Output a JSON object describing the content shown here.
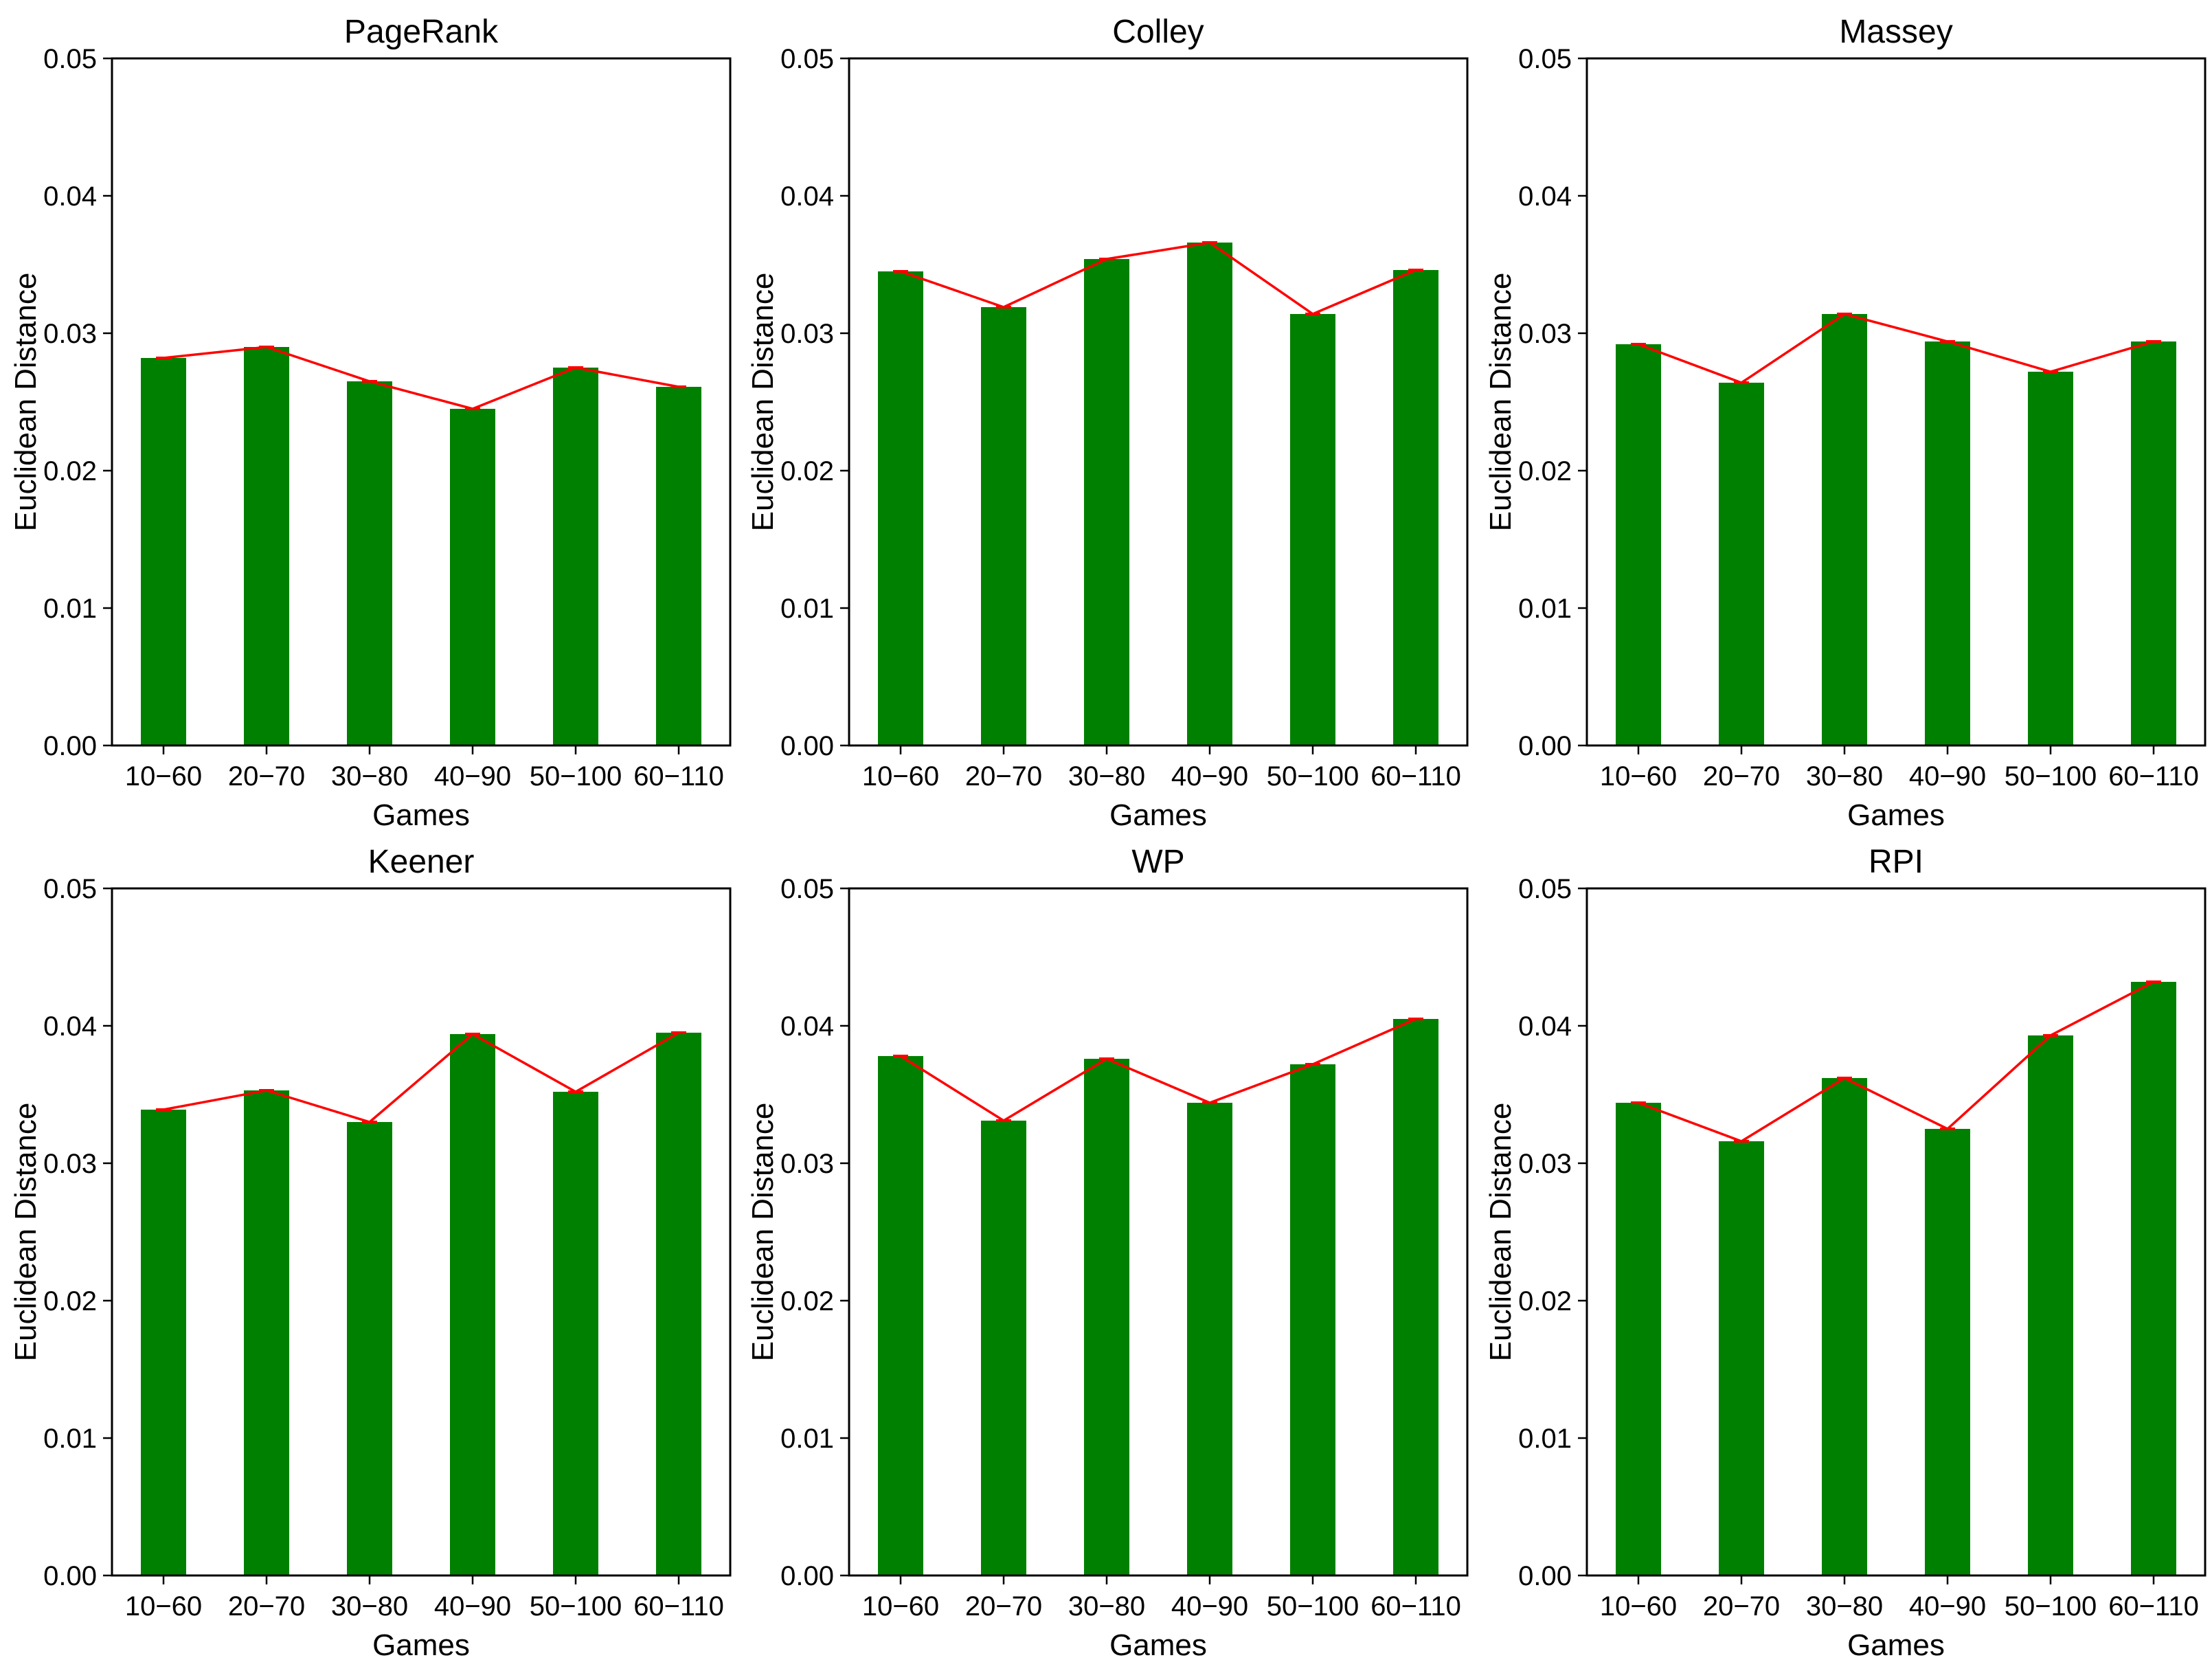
{
  "figure": {
    "background": "#ffffff",
    "bar_color": "#008000",
    "line_color": "#ff0000",
    "axis_color": "#000000",
    "xlabel": "Games",
    "ylabel": "Euclidean Distance",
    "categories": [
      "10−60",
      "20−70",
      "30−80",
      "40−90",
      "50−100",
      "60−110"
    ],
    "ytick_labels": [
      "0.00",
      "0.01",
      "0.02",
      "0.03",
      "0.04",
      "0.05"
    ],
    "ylim": [
      0,
      0.05
    ]
  },
  "chart_data": [
    {
      "type": "bar",
      "title": "PageRank",
      "categories": [
        "10−60",
        "20−70",
        "30−80",
        "40−90",
        "50−100",
        "60−110"
      ],
      "values": [
        0.0282,
        0.029,
        0.0265,
        0.0245,
        0.0275,
        0.0261
      ],
      "line_values": [
        0.0282,
        0.029,
        0.0265,
        0.0245,
        0.0275,
        0.0261
      ],
      "xlabel": "Games",
      "ylabel": "Euclidean Distance",
      "ylim": [
        0,
        0.05
      ],
      "grid": false,
      "legend": "none"
    },
    {
      "type": "bar",
      "title": "Colley",
      "categories": [
        "10−60",
        "20−70",
        "30−80",
        "40−90",
        "50−100",
        "60−110"
      ],
      "values": [
        0.0345,
        0.0319,
        0.0354,
        0.0366,
        0.0314,
        0.0346
      ],
      "line_values": [
        0.0345,
        0.0319,
        0.0354,
        0.0366,
        0.0314,
        0.0346
      ],
      "xlabel": "Games",
      "ylabel": "Euclidean Distance",
      "ylim": [
        0,
        0.05
      ],
      "grid": false,
      "legend": "none"
    },
    {
      "type": "bar",
      "title": "Massey",
      "categories": [
        "10−60",
        "20−70",
        "30−80",
        "40−90",
        "50−100",
        "60−110"
      ],
      "values": [
        0.0292,
        0.0264,
        0.0314,
        0.0294,
        0.0272,
        0.0294
      ],
      "line_values": [
        0.0292,
        0.0264,
        0.0314,
        0.0294,
        0.0272,
        0.0294
      ],
      "xlabel": "Games",
      "ylabel": "Euclidean Distance",
      "ylim": [
        0,
        0.05
      ],
      "grid": false,
      "legend": "none"
    },
    {
      "type": "bar",
      "title": "Keener",
      "categories": [
        "10−60",
        "20−70",
        "30−80",
        "40−90",
        "50−100",
        "60−110"
      ],
      "values": [
        0.0339,
        0.0353,
        0.033,
        0.0394,
        0.0352,
        0.0395
      ],
      "line_values": [
        0.0339,
        0.0353,
        0.033,
        0.0394,
        0.0352,
        0.0395
      ],
      "xlabel": "Games",
      "ylabel": "Euclidean Distance",
      "ylim": [
        0,
        0.05
      ],
      "grid": false,
      "legend": "none"
    },
    {
      "type": "bar",
      "title": "WP",
      "categories": [
        "10−60",
        "20−70",
        "30−80",
        "40−90",
        "50−100",
        "60−110"
      ],
      "values": [
        0.0378,
        0.0331,
        0.0376,
        0.0344,
        0.0372,
        0.0405
      ],
      "line_values": [
        0.0378,
        0.0331,
        0.0376,
        0.0344,
        0.0372,
        0.0405
      ],
      "xlabel": "Games",
      "ylabel": "Euclidean Distance",
      "ylim": [
        0,
        0.05
      ],
      "grid": false,
      "legend": "none"
    },
    {
      "type": "bar",
      "title": "RPI",
      "categories": [
        "10−60",
        "20−70",
        "30−80",
        "40−90",
        "50−100",
        "60−110"
      ],
      "values": [
        0.0344,
        0.0316,
        0.0362,
        0.0325,
        0.0393,
        0.0432
      ],
      "line_values": [
        0.0344,
        0.0316,
        0.0362,
        0.0325,
        0.0393,
        0.0432
      ],
      "xlabel": "Games",
      "ylabel": "Euclidean Distance",
      "ylim": [
        0,
        0.05
      ],
      "grid": false,
      "legend": "none"
    }
  ]
}
